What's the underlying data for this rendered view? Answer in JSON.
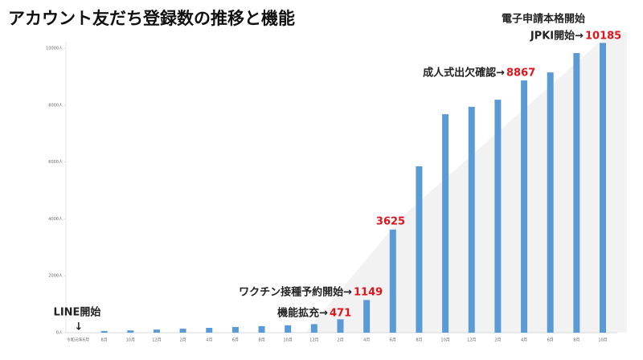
{
  "chart_data": {
    "type": "bar",
    "title": "アカウント友だち登録数の推移と機能",
    "categories": [
      "令和元年6月",
      "8月",
      "10月",
      "12月",
      "2月",
      "4月",
      "6月",
      "8月",
      "10月",
      "12月",
      "2月",
      "4月",
      "6月",
      "8月",
      "10月",
      "12月",
      "2月",
      "4月",
      "6月",
      "8月",
      "10月"
    ],
    "values": [
      0,
      60,
      80,
      110,
      140,
      170,
      200,
      230,
      260,
      300,
      471,
      1149,
      3625,
      5850,
      7680,
      7940,
      8190,
      8867,
      9150,
      9830,
      10185
    ],
    "color": "#5b9bd5",
    "ylim": [
      0,
      10000
    ],
    "yticks": [
      {
        "value": 0,
        "label": "0人"
      },
      {
        "value": 2000,
        "label": "2000人"
      },
      {
        "value": 4000,
        "label": "4000人"
      },
      {
        "value": 6000,
        "label": "6000人"
      },
      {
        "value": 8000,
        "label": "8000人"
      },
      {
        "value": 10000,
        "label": "10000人"
      }
    ],
    "annotations": [
      "LINE開始",
      "↓",
      "機能拡充→",
      "ワクチン接種予約開始→",
      "成人式出欠確認→",
      "電子申請本格開始",
      "JPKI開始→"
    ]
  }
}
